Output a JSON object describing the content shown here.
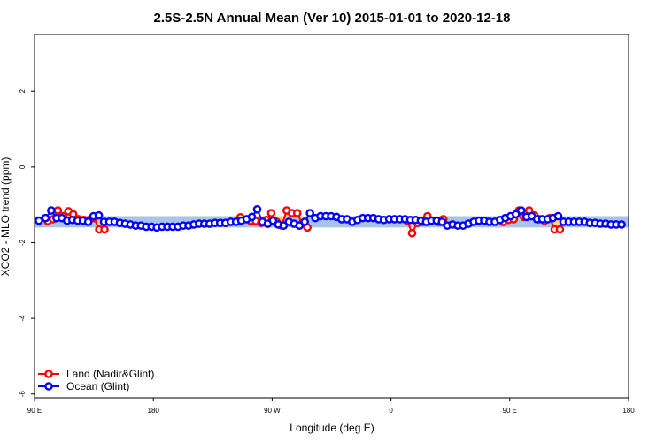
{
  "chart_data": {
    "type": "line",
    "title": "2.5S-2.5N Annual Mean (Ver 10)   2015-01-01 to 2020-12-18",
    "xlabel": "Longitude (deg E)",
    "ylabel": "XCO2 - MLO trend (ppm)",
    "xlim": [
      -90,
      180
    ],
    "ylim": [
      -6.1,
      3.5
    ],
    "xticks": [
      {
        "value": -90,
        "label": "90 E"
      },
      {
        "value": -36,
        "label": "180"
      },
      {
        "value": 18,
        "label": "90 W"
      },
      {
        "value": 72,
        "label": "0"
      },
      {
        "value": 126,
        "label": "90 E"
      },
      {
        "value": 180,
        "label": "180"
      }
    ],
    "yticks": [
      2,
      0,
      -2,
      -4,
      -6
    ],
    "legend_position": "bottom-left",
    "band": {
      "color": "#a8c4e6",
      "upper": -1.3,
      "lower": -1.6
    },
    "series": [
      {
        "name": "Land (Nadir&Glint)",
        "color": "#ff0000",
        "fill_color": "#ffd080",
        "points": [
          [
            -84,
            -1.43
          ],
          [
            -81.6,
            -1.38
          ],
          [
            -79.4,
            -1.15
          ],
          [
            -77,
            -1.3
          ],
          [
            -74.6,
            -1.17
          ],
          [
            -72.4,
            -1.25
          ],
          [
            -70,
            -1.38
          ],
          [
            -67.6,
            -1.4
          ],
          [
            -65.2,
            -1.4
          ],
          [
            -63,
            -1.35
          ],
          [
            -60.6,
            -1.65
          ],
          [
            -58.2,
            -1.65
          ],
          [
            3.6,
            -1.33
          ],
          [
            8.4,
            -1.43
          ],
          [
            10.6,
            -1.43
          ],
          [
            13,
            -1.48
          ],
          [
            15.4,
            -1.4
          ],
          [
            17.6,
            -1.22
          ],
          [
            20,
            -1.45
          ],
          [
            22.4,
            -1.55
          ],
          [
            24.6,
            -1.15
          ],
          [
            27,
            -1.22
          ],
          [
            29.4,
            -1.22
          ],
          [
            31.6,
            -1.5
          ],
          [
            34,
            -1.6
          ],
          [
            79.4,
            -1.42
          ],
          [
            81.6,
            -1.75
          ],
          [
            84,
            -1.48
          ],
          [
            86.4,
            -1.45
          ],
          [
            88.6,
            -1.3
          ],
          [
            93.6,
            -1.45
          ],
          [
            95.8,
            -1.38
          ],
          [
            123,
            -1.45
          ],
          [
            125.4,
            -1.4
          ],
          [
            127.8,
            -1.38
          ],
          [
            130.2,
            -1.15
          ],
          [
            132.4,
            -1.32
          ],
          [
            134.8,
            -1.15
          ],
          [
            137.2,
            -1.28
          ],
          [
            139.4,
            -1.38
          ],
          [
            141.8,
            -1.42
          ],
          [
            144.2,
            -1.35
          ],
          [
            146.4,
            -1.65
          ],
          [
            148.8,
            -1.65
          ]
        ]
      },
      {
        "name": "Ocean (Glint)",
        "color": "#0000ff",
        "points": [
          [
            -88,
            -1.42
          ],
          [
            -85,
            -1.35
          ],
          [
            -82.4,
            -1.15
          ],
          [
            -80,
            -1.35
          ],
          [
            -77.6,
            -1.35
          ],
          [
            -75.2,
            -1.42
          ],
          [
            -72.8,
            -1.4
          ],
          [
            -70.4,
            -1.42
          ],
          [
            -68,
            -1.42
          ],
          [
            -65.6,
            -1.45
          ],
          [
            -63.2,
            -1.3
          ],
          [
            -60.8,
            -1.28
          ],
          [
            -58.4,
            -1.45
          ],
          [
            -56,
            -1.45
          ],
          [
            -53.6,
            -1.45
          ],
          [
            -51.2,
            -1.48
          ],
          [
            -48.8,
            -1.5
          ],
          [
            -46.4,
            -1.52
          ],
          [
            -44,
            -1.55
          ],
          [
            -41.6,
            -1.55
          ],
          [
            -39.2,
            -1.58
          ],
          [
            -36.8,
            -1.58
          ],
          [
            -34.4,
            -1.6
          ],
          [
            -32,
            -1.58
          ],
          [
            -29.6,
            -1.58
          ],
          [
            -27.2,
            -1.58
          ],
          [
            -24.8,
            -1.58
          ],
          [
            -22.4,
            -1.55
          ],
          [
            -20,
            -1.55
          ],
          [
            -17.6,
            -1.52
          ],
          [
            -15.2,
            -1.5
          ],
          [
            -12.8,
            -1.5
          ],
          [
            -10.4,
            -1.5
          ],
          [
            -8,
            -1.48
          ],
          [
            -5.6,
            -1.48
          ],
          [
            -3.2,
            -1.48
          ],
          [
            -0.8,
            -1.45
          ],
          [
            1.6,
            -1.45
          ],
          [
            4,
            -1.42
          ],
          [
            6.4,
            -1.38
          ],
          [
            8.8,
            -1.32
          ],
          [
            11.2,
            -1.12
          ],
          [
            13.6,
            -1.45
          ],
          [
            16,
            -1.5
          ],
          [
            18.4,
            -1.42
          ],
          [
            20.8,
            -1.52
          ],
          [
            23.2,
            -1.55
          ],
          [
            25.6,
            -1.45
          ],
          [
            28,
            -1.5
          ],
          [
            30.4,
            -1.55
          ],
          [
            32.8,
            -1.45
          ],
          [
            35.2,
            -1.22
          ],
          [
            37.6,
            -1.35
          ],
          [
            40,
            -1.3
          ],
          [
            42.4,
            -1.3
          ],
          [
            44.8,
            -1.3
          ],
          [
            47.2,
            -1.32
          ],
          [
            49.6,
            -1.38
          ],
          [
            52,
            -1.38
          ],
          [
            54.4,
            -1.45
          ],
          [
            56.8,
            -1.4
          ],
          [
            59.2,
            -1.35
          ],
          [
            61.6,
            -1.35
          ],
          [
            64,
            -1.35
          ],
          [
            66.4,
            -1.38
          ],
          [
            68.8,
            -1.4
          ],
          [
            71.2,
            -1.38
          ],
          [
            73.6,
            -1.38
          ],
          [
            76,
            -1.38
          ],
          [
            78.4,
            -1.38
          ],
          [
            80.8,
            -1.4
          ],
          [
            83.2,
            -1.4
          ],
          [
            85.6,
            -1.42
          ],
          [
            88,
            -1.45
          ],
          [
            90.4,
            -1.42
          ],
          [
            92.8,
            -1.42
          ],
          [
            95.2,
            -1.45
          ],
          [
            97.6,
            -1.55
          ],
          [
            100,
            -1.52
          ],
          [
            102.4,
            -1.55
          ],
          [
            104.8,
            -1.55
          ],
          [
            107.2,
            -1.5
          ],
          [
            109.6,
            -1.45
          ],
          [
            112,
            -1.42
          ],
          [
            114.4,
            -1.42
          ],
          [
            116.8,
            -1.45
          ],
          [
            119.2,
            -1.45
          ],
          [
            121.6,
            -1.4
          ],
          [
            124,
            -1.35
          ],
          [
            126.4,
            -1.3
          ],
          [
            128.8,
            -1.25
          ],
          [
            131.2,
            -1.15
          ],
          [
            133.6,
            -1.32
          ],
          [
            136,
            -1.3
          ],
          [
            138.4,
            -1.38
          ],
          [
            140.8,
            -1.38
          ],
          [
            143.2,
            -1.38
          ],
          [
            145.6,
            -1.35
          ],
          [
            148,
            -1.3
          ],
          [
            150.4,
            -1.45
          ],
          [
            152.8,
            -1.45
          ],
          [
            155.2,
            -1.45
          ],
          [
            157.6,
            -1.45
          ],
          [
            160,
            -1.45
          ],
          [
            162.4,
            -1.48
          ],
          [
            164.8,
            -1.48
          ],
          [
            167.2,
            -1.5
          ],
          [
            169.6,
            -1.5
          ],
          [
            172,
            -1.52
          ],
          [
            174.4,
            -1.52
          ],
          [
            176.8,
            -1.52
          ]
        ]
      }
    ]
  }
}
